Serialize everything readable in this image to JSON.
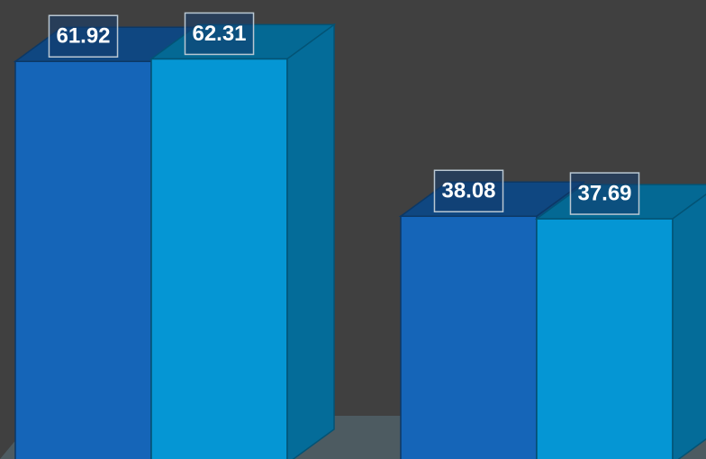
{
  "chart_data": {
    "type": "bar3d",
    "categories": [
      null,
      null
    ],
    "series": [
      {
        "color": "#1565b8",
        "values": [
          61.92,
          38.08
        ]
      },
      {
        "color": "#0596d4",
        "values": [
          62.31,
          37.69
        ]
      }
    ]
  }
}
